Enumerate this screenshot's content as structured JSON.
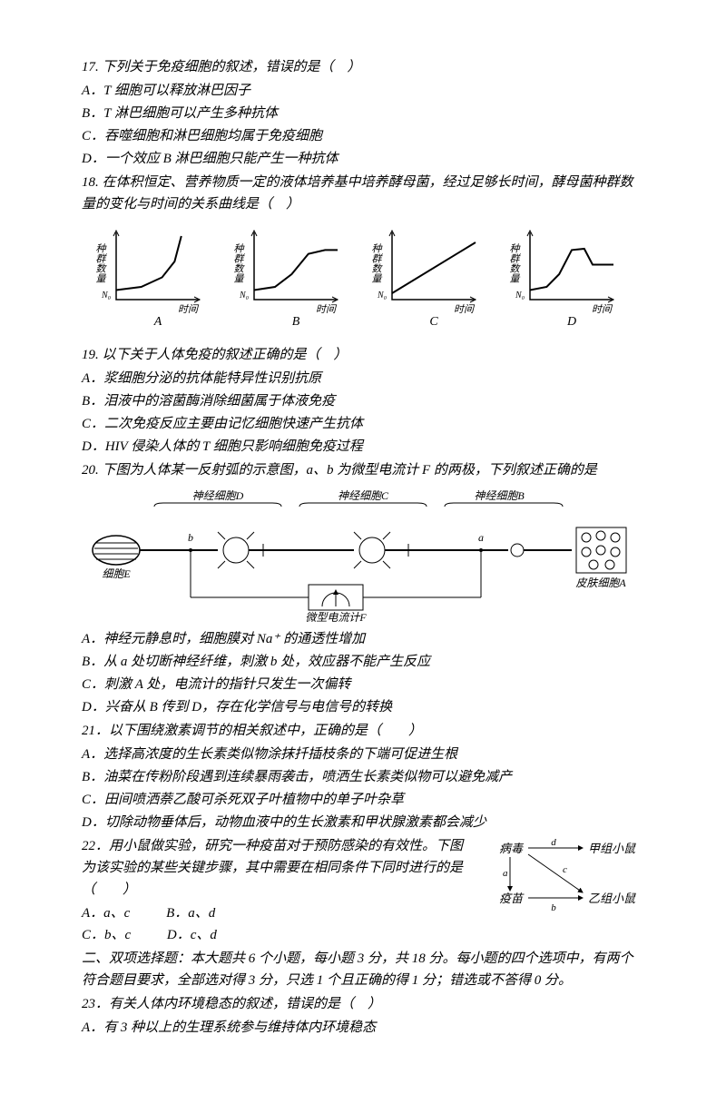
{
  "q17": {
    "stem": "17. 下列关于免疫细胞的叙述，错误的是（　）",
    "A": "A．T 细胞可以释放淋巴因子",
    "B": "B．T 淋巴细胞可以产生多种抗体",
    "C": "C．吞噬细胞和淋巴细胞均属于免疫细胞",
    "D": "D．一个效应 B 淋巴细胞只能产生一种抗体"
  },
  "q18": {
    "stem": "18. 在体积恒定、营养物质一定的液体培养基中培养酵母菌，经过足够长时间，酵母菌种群数量的变化与时间的关系曲线是（　）",
    "axis_y": "种群数量",
    "axis_x": "时间",
    "y0": "N₀",
    "labels": {
      "A": "A",
      "B": "B",
      "C": "C",
      "D": "D"
    },
    "chart": {
      "type": "line",
      "panels": 4,
      "stroke": "#000000",
      "stroke_width": 2,
      "background": "#ffffff",
      "curves": {
        "A": [
          [
            0,
            0.15
          ],
          [
            0.3,
            0.2
          ],
          [
            0.55,
            0.35
          ],
          [
            0.7,
            0.6
          ],
          [
            0.78,
            1.0
          ]
        ],
        "B": [
          [
            0,
            0.15
          ],
          [
            0.25,
            0.2
          ],
          [
            0.45,
            0.4
          ],
          [
            0.65,
            0.72
          ],
          [
            0.85,
            0.78
          ],
          [
            1.0,
            0.78
          ]
        ],
        "C": [
          [
            0,
            0.1
          ],
          [
            1.0,
            0.9
          ]
        ],
        "D": [
          [
            0,
            0.15
          ],
          [
            0.2,
            0.2
          ],
          [
            0.35,
            0.4
          ],
          [
            0.5,
            0.78
          ],
          [
            0.65,
            0.8
          ],
          [
            0.75,
            0.55
          ],
          [
            1.0,
            0.55
          ]
        ]
      }
    }
  },
  "q19": {
    "stem": "19. 以下关于人体免疫的叙述正确的是（　）",
    "A": "A．浆细胞分泌的抗体能特异性识别抗原",
    "B": "B．泪液中的溶菌酶消除细菌属于体液免疫",
    "C": "C．二次免疫反应主要由记忆细胞快速产生抗体",
    "D": "D．HIV 侵染人体的 T 细胞只影响细胞免疫过程"
  },
  "q20": {
    "stem": "20. 下图为人体某一反射弧的示意图，a、b 为微型电流计 F 的两极，下列叙述正确的是",
    "labels": {
      "cellE": "细胞E",
      "nD": "神经细胞D",
      "nC": "神经细胞C",
      "nB": "神经细胞B",
      "skinA": "皮肤细胞A",
      "meter": "微型电流计F",
      "a": "a",
      "b": "b"
    },
    "A": "A．神经元静息时，细胞膜对 Na⁺ 的通透性增加",
    "B": "B．从 a 处切断神经纤维，刺激 b 处，效应器不能产生反应",
    "C": "C．刺激 A 处，电流计的指针只发生一次偏转",
    "D": "D．兴奋从 B 传到 D，存在化学信号与电信号的转换"
  },
  "q21": {
    "stem": "21．以下围绕激素调节的相关叙述中，正确的是（　　）",
    "A": "A．选择高浓度的生长素类似物涂抹扦插枝条的下端可促进生根",
    "B": "B．油菜在传粉阶段遇到连续暴雨袭击，喷洒生长素类似物可以避免减产",
    "C": "C．田间喷洒萘乙酸可杀死双子叶植物中的单子叶杂草",
    "D": "D．切除动物垂体后，动物血液中的生长激素和甲状腺激素都会减少"
  },
  "q22": {
    "stem1": "22．用小鼠做实验，研究一种疫苗对于预防感染的有效性。下图为该实验的某些关键步骤，其中需要在相同条件下同时进行的是（　　）",
    "opts": {
      "A": "A．a、c",
      "B": "B．a、d",
      "C": "C．b、c",
      "D": "D．c、d"
    },
    "diagram": {
      "virus": "病毒",
      "vaccine": "疫苗",
      "groupA": "甲组小鼠",
      "groupB": "乙组小鼠",
      "a": "a",
      "b": "b",
      "c": "c",
      "d": "d",
      "stroke": "#000000"
    }
  },
  "section2": "二、双项选择题：本大题共 6 个小题，每小题 3 分，共 18 分。每小题的四个选项中，有两个符合题目要求，全部选对得 3 分，只选 1 个且正确的得 1 分；错选或不答得 0 分。",
  "q23": {
    "stem": "23．有关人体内环境稳态的叙述，错误的是（　）",
    "A": "A．有 3 种以上的生理系统参与维持体内环境稳态"
  }
}
